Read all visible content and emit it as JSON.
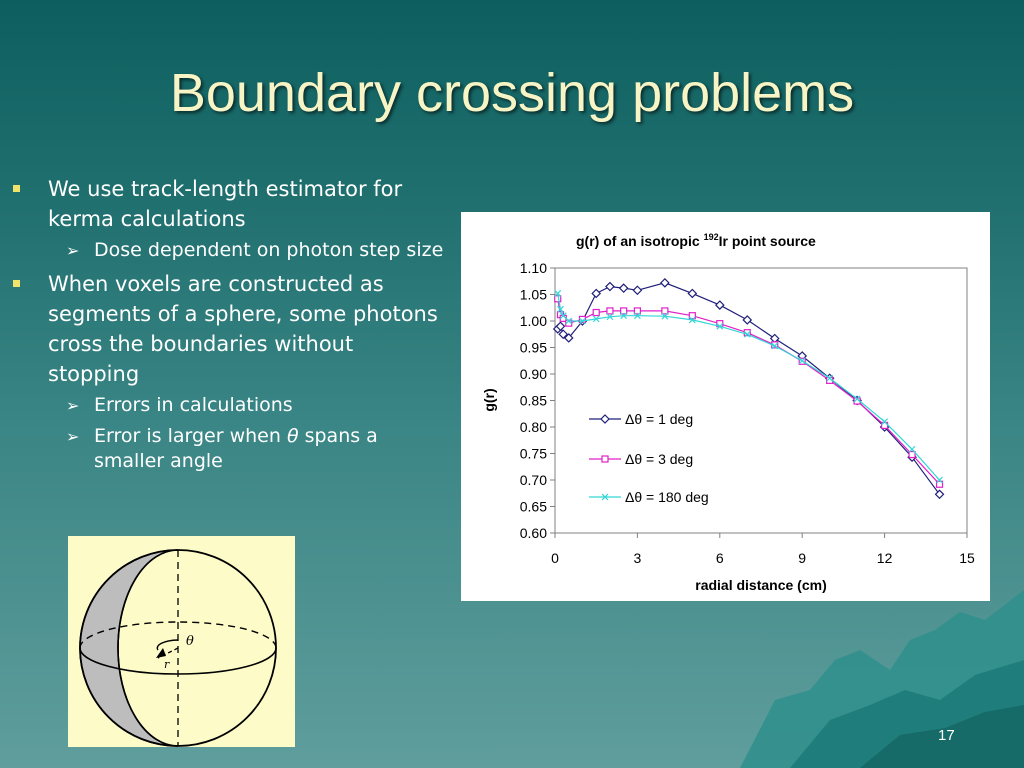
{
  "slide": {
    "title": "Boundary crossing problems",
    "page_number": "17"
  },
  "bullets": {
    "b1": "We use track-length estimator for kerma calculations",
    "b1_sub1": "Dose dependent on photon step size",
    "b2": "When voxels are constructed as segments of a sphere, some photons cross the boundaries without stopping",
    "b2_sub1": "Errors in calculations",
    "b2_sub2_pre": "Error is larger when ",
    "b2_sub2_theta": "θ",
    "b2_sub2_post": " spans a smaller angle"
  },
  "diagram": {
    "theta_label": "θ",
    "r_label": "r"
  },
  "chart_data": {
    "type": "line",
    "title": "g(r) of an isotropic 192Ir point source",
    "title_parts": {
      "pre": "g(r) of an isotropic ",
      "sup": "192",
      "post": "Ir point source"
    },
    "xlabel": "radial distance (cm)",
    "ylabel": "g(r)",
    "xlim": [
      0,
      15
    ],
    "ylim": [
      0.6,
      1.1
    ],
    "x_ticks": [
      "0",
      "3",
      "6",
      "9",
      "12",
      "15"
    ],
    "y_ticks": [
      "0.60",
      "0.65",
      "0.70",
      "0.75",
      "0.80",
      "0.85",
      "0.90",
      "0.95",
      "1.00",
      "1.05",
      "1.10"
    ],
    "grid": false,
    "legend_position": "center-left inside plot",
    "series": [
      {
        "name": "Δθ = 1 deg",
        "color": "#1f1f7a",
        "marker": "diamond",
        "x": [
          0.1,
          0.2,
          0.3,
          0.5,
          1,
          1.5,
          2,
          2.5,
          3,
          4,
          5,
          6,
          7,
          8,
          9,
          10,
          11,
          12,
          13,
          14
        ],
        "y": [
          0.985,
          0.99,
          0.975,
          0.968,
          1.0,
          1.052,
          1.065,
          1.062,
          1.058,
          1.072,
          1.052,
          1.03,
          1.002,
          0.967,
          0.934,
          0.892,
          0.85,
          0.8,
          0.743,
          0.673
        ]
      },
      {
        "name": "Δθ = 3 deg",
        "color": "#e020c8",
        "marker": "square",
        "x": [
          0.1,
          0.2,
          0.3,
          0.5,
          1,
          1.5,
          2,
          2.5,
          3,
          4,
          5,
          6,
          7,
          8,
          9,
          10,
          11,
          12,
          13,
          14
        ],
        "y": [
          1.042,
          1.012,
          1.005,
          0.996,
          1.003,
          1.016,
          1.019,
          1.019,
          1.019,
          1.019,
          1.01,
          0.995,
          0.978,
          0.955,
          0.924,
          0.888,
          0.849,
          0.803,
          0.748,
          0.692
        ]
      },
      {
        "name": "Δθ = 180 deg",
        "color": "#33d6d6",
        "marker": "x",
        "x": [
          0.1,
          0.2,
          0.3,
          0.5,
          1,
          1.5,
          2,
          2.5,
          3,
          4,
          5,
          6,
          7,
          8,
          9,
          10,
          11,
          12,
          13,
          14
        ],
        "y": [
          1.052,
          1.022,
          1.01,
          1.0,
          1.0,
          1.004,
          1.008,
          1.01,
          1.01,
          1.009,
          1.002,
          0.99,
          0.975,
          0.953,
          0.925,
          0.892,
          0.853,
          0.81,
          0.758,
          0.7
        ]
      }
    ]
  }
}
